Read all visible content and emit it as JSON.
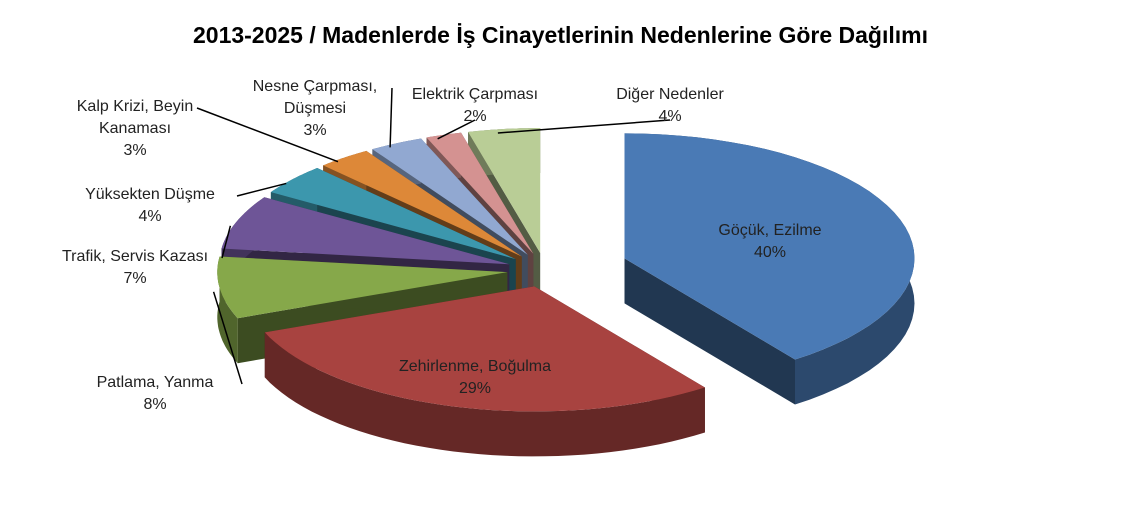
{
  "chart_data": {
    "type": "pie",
    "title": "2013-2025 / Madenlerde İş Cinayetlerinin Nedenlerine Göre Dağılımı",
    "categories": [
      "Göçük, Ezilme",
      "Zehirlenme, Boğulma",
      "Patlama, Yanma",
      "Trafik, Servis Kazası",
      "Yüksekten Düşme",
      "Kalp Krizi, Beyin Kanaması",
      "Nesne Çarpması, Düşmesi",
      "Elektrik Çarpması",
      "Diğer Nedenler"
    ],
    "values": [
      40,
      29,
      8,
      7,
      4,
      3,
      3,
      2,
      4
    ],
    "value_labels": [
      "40%",
      "29%",
      "8%",
      "7%",
      "4%",
      "3%",
      "3%",
      "2%",
      "4%"
    ],
    "colors": [
      "#4a7ab5",
      "#a84340",
      "#86a84a",
      "#6e5597",
      "#3c97ad",
      "#dd8838",
      "#91a8d1",
      "#d49291",
      "#b9cd96"
    ]
  }
}
